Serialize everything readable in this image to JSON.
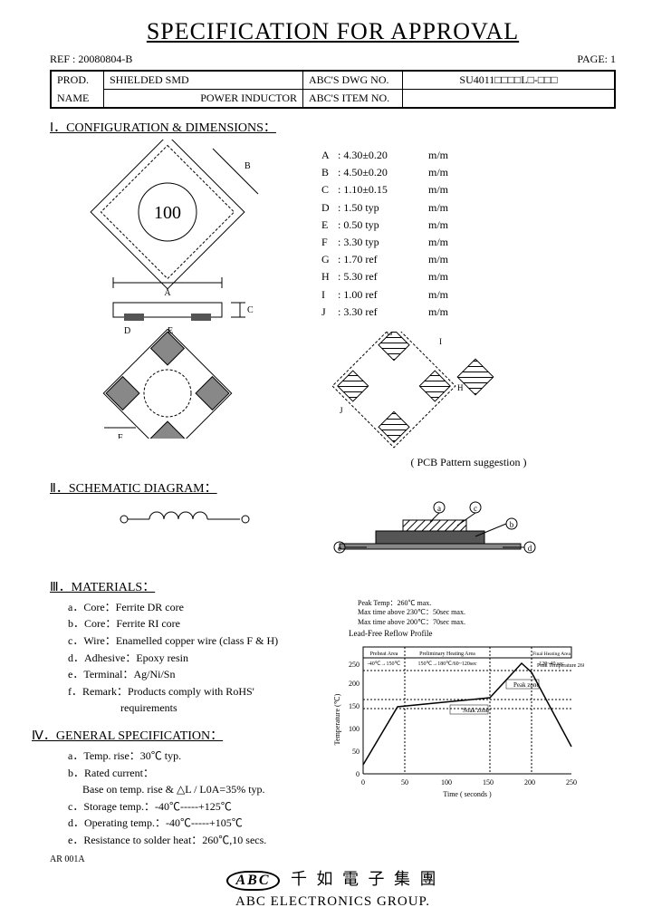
{
  "title": "SPECIFICATION FOR APPROVAL",
  "ref_label": "REF : 20080804-B",
  "page_label": "PAGE: 1",
  "header": {
    "prod": "PROD.",
    "name": "NAME",
    "prod_val_1": "SHIELDED SMD",
    "prod_val_2": "POWER INDUCTOR",
    "dwg": "ABC'S DWG NO.",
    "item": "ABC'S ITEM NO.",
    "dwg_val": "SU4011□□□□L□-□□□"
  },
  "sections": {
    "s1": "Ⅰ．CONFIGURATION & DIMENSIONS：",
    "s2": "Ⅱ．SCHEMATIC DIAGRAM：",
    "s3": "Ⅲ．MATERIALS：",
    "s4": "Ⅳ．GENERAL SPECIFICATION："
  },
  "dims": [
    {
      "k": "A",
      "v": ": 4.30±0.20",
      "u": "m/m"
    },
    {
      "k": "B",
      "v": ": 4.50±0.20",
      "u": "m/m"
    },
    {
      "k": "C",
      "v": ": 1.10±0.15",
      "u": "m/m"
    },
    {
      "k": "D",
      "v": ": 1.50  typ",
      "u": "m/m"
    },
    {
      "k": "E",
      "v": ": 0.50  typ",
      "u": "m/m"
    },
    {
      "k": "F",
      "v": ": 3.30  typ",
      "u": "m/m"
    },
    {
      "k": "G",
      "v": ": 1.70  ref",
      "u": "m/m"
    },
    {
      "k": "H",
      "v": ": 5.30  ref",
      "u": "m/m"
    },
    {
      "k": "I",
      "v": ": 1.00  ref",
      "u": "m/m"
    },
    {
      "k": "J",
      "v": ": 3.30  ref",
      "u": "m/m"
    }
  ],
  "pcb_caption": "( PCB Pattern suggestion )",
  "drawing_mark": "100",
  "schematic_terms": {
    "left": "○",
    "right": "○"
  },
  "materials": {
    "a": "a．Core：Ferrite DR core",
    "b": "b．Core：Ferrite RI core",
    "c": "c．Wire：Enamelled copper wire (class F & H)",
    "d": "d．Adhesive：Epoxy resin",
    "e": "e．Terminal：Ag/Ni/Sn",
    "f": "f．Remark：Products comply with RoHS'",
    "f2": "requirements"
  },
  "general": {
    "a": "a．Temp. rise：30℃ typ.",
    "b": "b．Rated current：",
    "b2": "Base on temp. rise & △L / L0A=35% typ.",
    "c": "c．Storage temp.：-40℃-----+125℃",
    "d": "d．Operating temp.：-40℃-----+105℃",
    "e": "e．Resistance to solder heat：260℃,10 secs."
  },
  "reflow": {
    "notes": [
      "Peak Temp：260℃ max.",
      "Max time above 230℃：50sec max.",
      "Max time above 200℃：70sec max."
    ],
    "caption": "Lead-Free Reflow Profile",
    "zones": [
      "Preheat Area",
      "Preliminary Heating Area",
      "Final Heating Area"
    ],
    "zone_ranges": [
      "-40℃→150℃",
      "150℃→180℃/60~120sec",
      "120~40 sec"
    ],
    "annot": [
      "Soak zone",
      "Peak zone",
      "Peak Temperature 260℃"
    ],
    "x_label": "Time ( seconds )",
    "y_label": "Temperature (℃)",
    "x_ticks": [
      0,
      50,
      100,
      150,
      200,
      250
    ],
    "y_ticks": [
      0,
      50,
      100,
      150,
      200,
      250
    ],
    "profile_points": [
      [
        0,
        20
      ],
      [
        40,
        150
      ],
      [
        150,
        180
      ],
      [
        190,
        245
      ],
      [
        200,
        230
      ],
      [
        250,
        60
      ]
    ],
    "colors": {
      "line": "#000",
      "grid": "#000",
      "bg": "#fff"
    }
  },
  "footer": {
    "ar": "AR 001A",
    "logo": "ABC",
    "cjk": "千 如 電 子 集 團",
    "eng": "ABC ELECTRONICS GROUP."
  },
  "labels": {
    "a": "a",
    "b": "b",
    "c": "c",
    "d": "d",
    "e": "e"
  }
}
